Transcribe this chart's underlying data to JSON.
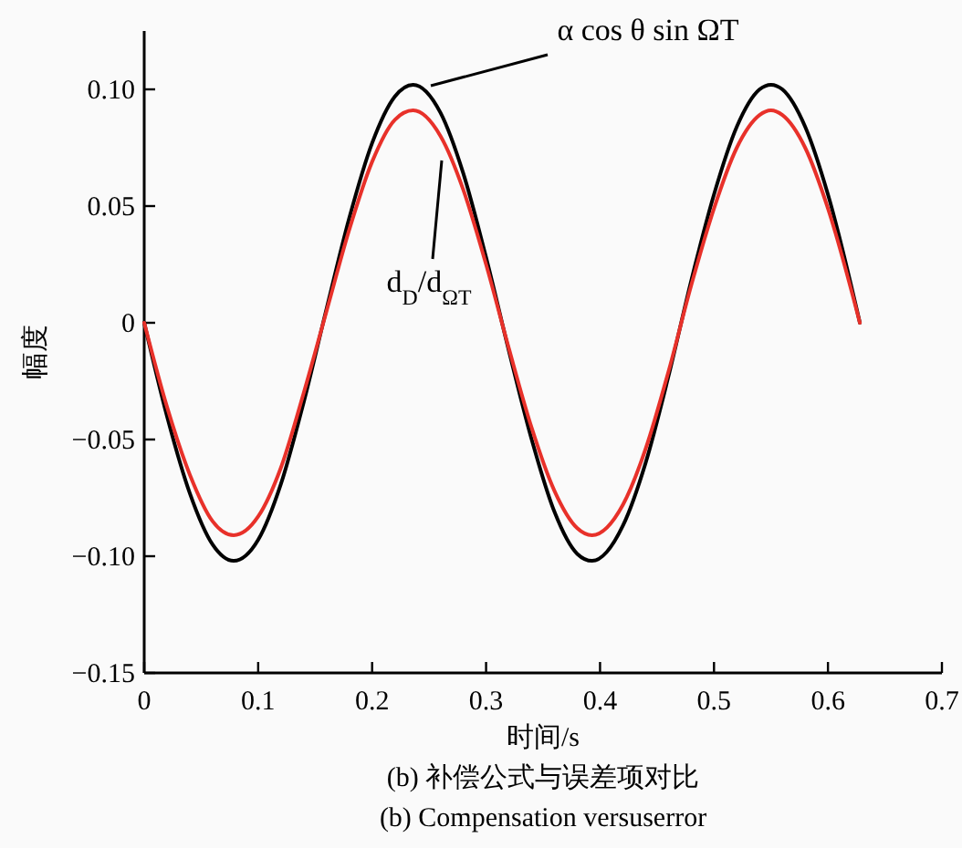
{
  "chart_data": {
    "type": "line",
    "title": "(b) 补偿公式与误差项对比",
    "subtitle": "(b) Compensation versuserror",
    "xlabel": "时间/s",
    "ylabel": "幅度",
    "x": [
      0,
      0.02,
      0.04,
      0.06,
      0.0785,
      0.1,
      0.12,
      0.14,
      0.16,
      0.18,
      0.2,
      0.22,
      0.236,
      0.26,
      0.28,
      0.3,
      0.32,
      0.34,
      0.36,
      0.38,
      0.393,
      0.42,
      0.44,
      0.46,
      0.48,
      0.5,
      0.52,
      0.54,
      0.55,
      0.56,
      0.58,
      0.6,
      0.628
    ],
    "series": [
      {
        "name": "α cos θ sin ΩT",
        "color": "#000000",
        "values": [
          0,
          -0.04,
          -0.073,
          -0.095,
          -0.102,
          -0.093,
          -0.069,
          -0.034,
          0.006,
          0.045,
          0.077,
          0.097,
          0.102,
          0.09,
          0.064,
          0.028,
          -0.012,
          -0.05,
          -0.081,
          -0.099,
          -0.102,
          -0.087,
          -0.06,
          -0.023,
          0.018,
          0.055,
          0.084,
          0.1,
          0.102,
          0.1,
          0.084,
          0.055,
          0
        ]
      },
      {
        "name": "d$_{D}$/d$_{ΩT}$",
        "color": "#e8312a",
        "values": [
          0,
          -0.036,
          -0.065,
          -0.085,
          -0.091,
          -0.083,
          -0.062,
          -0.03,
          0.005,
          0.04,
          0.069,
          0.087,
          0.091,
          0.08,
          0.057,
          0.025,
          -0.011,
          -0.045,
          -0.072,
          -0.088,
          -0.091,
          -0.078,
          -0.054,
          -0.021,
          0.016,
          0.049,
          0.075,
          0.089,
          0.091,
          0.089,
          0.075,
          0.049,
          0
        ]
      }
    ],
    "xlim": [
      0,
      0.7
    ],
    "xticks": [
      0,
      0.1,
      0.2,
      0.3,
      0.4,
      0.5,
      0.6,
      0.7
    ],
    "ylim": [
      -0.15,
      0.125
    ],
    "yticks": [
      {
        "value": -0.15,
        "label": "−0.15"
      },
      {
        "value": -0.1,
        "label": "−0.10"
      },
      {
        "value": -0.05,
        "label": "−0.05"
      },
      {
        "value": 0,
        "label": "0"
      },
      {
        "value": 0.05,
        "label": "0.05"
      },
      {
        "value": 0.1,
        "label": "0.10"
      }
    ],
    "grid": false,
    "legend": false,
    "marker": "none",
    "line_style": "solid"
  }
}
